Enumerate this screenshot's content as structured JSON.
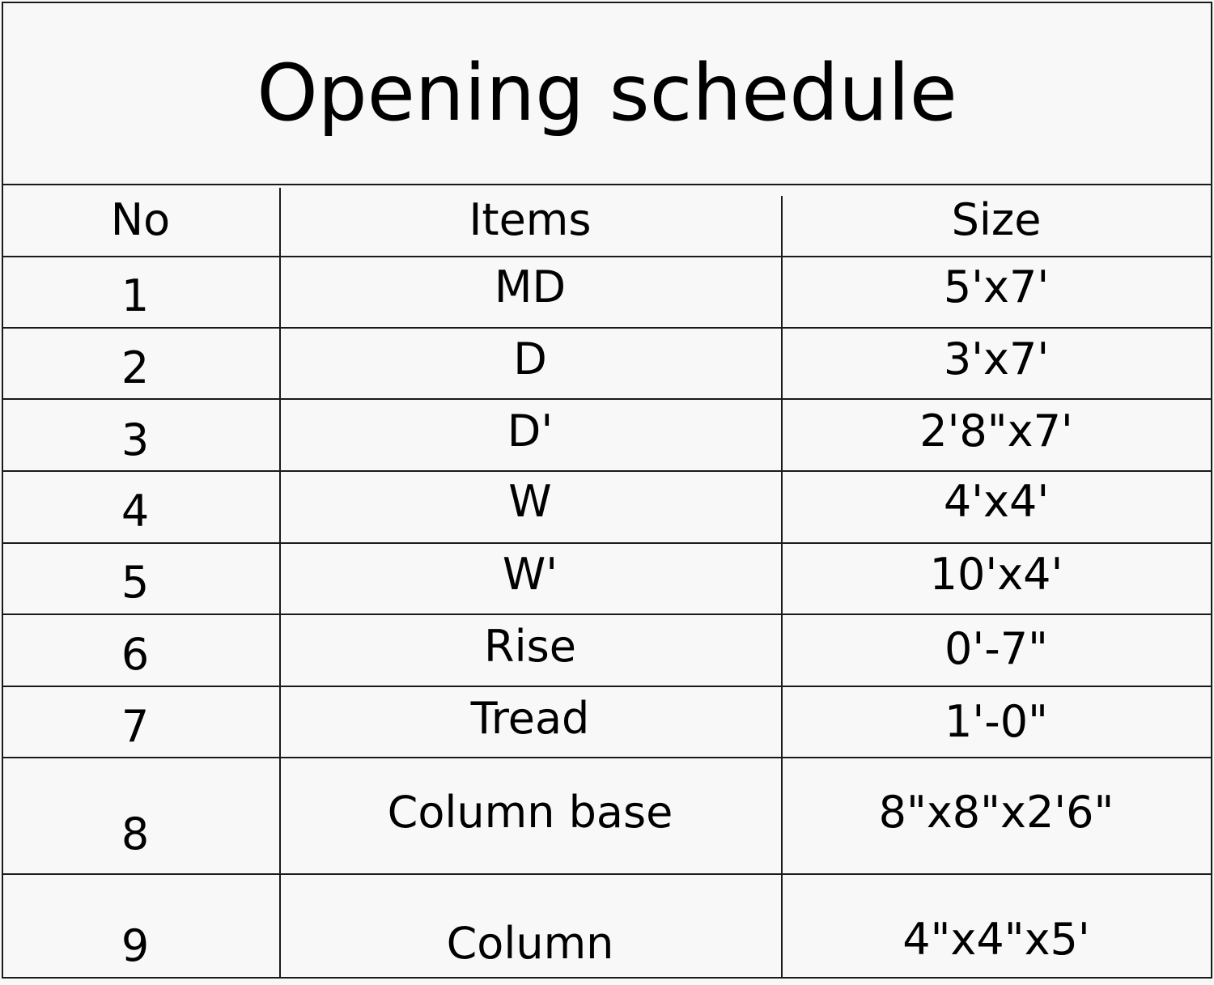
{
  "title": "Opening schedule",
  "headers": {
    "no": "No",
    "items": "Items",
    "size": "Size"
  },
  "rows": [
    {
      "no": "1",
      "item": "MD",
      "size": "5'x7'"
    },
    {
      "no": "2",
      "item": "D",
      "size": "3'x7'"
    },
    {
      "no": "3",
      "item": "D'",
      "size": "2'8\"x7'"
    },
    {
      "no": "4",
      "item": "W",
      "size": "4'x4'"
    },
    {
      "no": "5",
      "item": "W'",
      "size": "10'x4'"
    },
    {
      "no": "6",
      "item": "Rise",
      "size": "0'-7\""
    },
    {
      "no": "7",
      "item": "Tread",
      "size": "1'-0\""
    },
    {
      "no": "8",
      "item": "Column base",
      "size": "8\"x8\"x2'6\""
    },
    {
      "no": "9",
      "item": "Column",
      "size": "4\"x4\"x5'"
    }
  ]
}
